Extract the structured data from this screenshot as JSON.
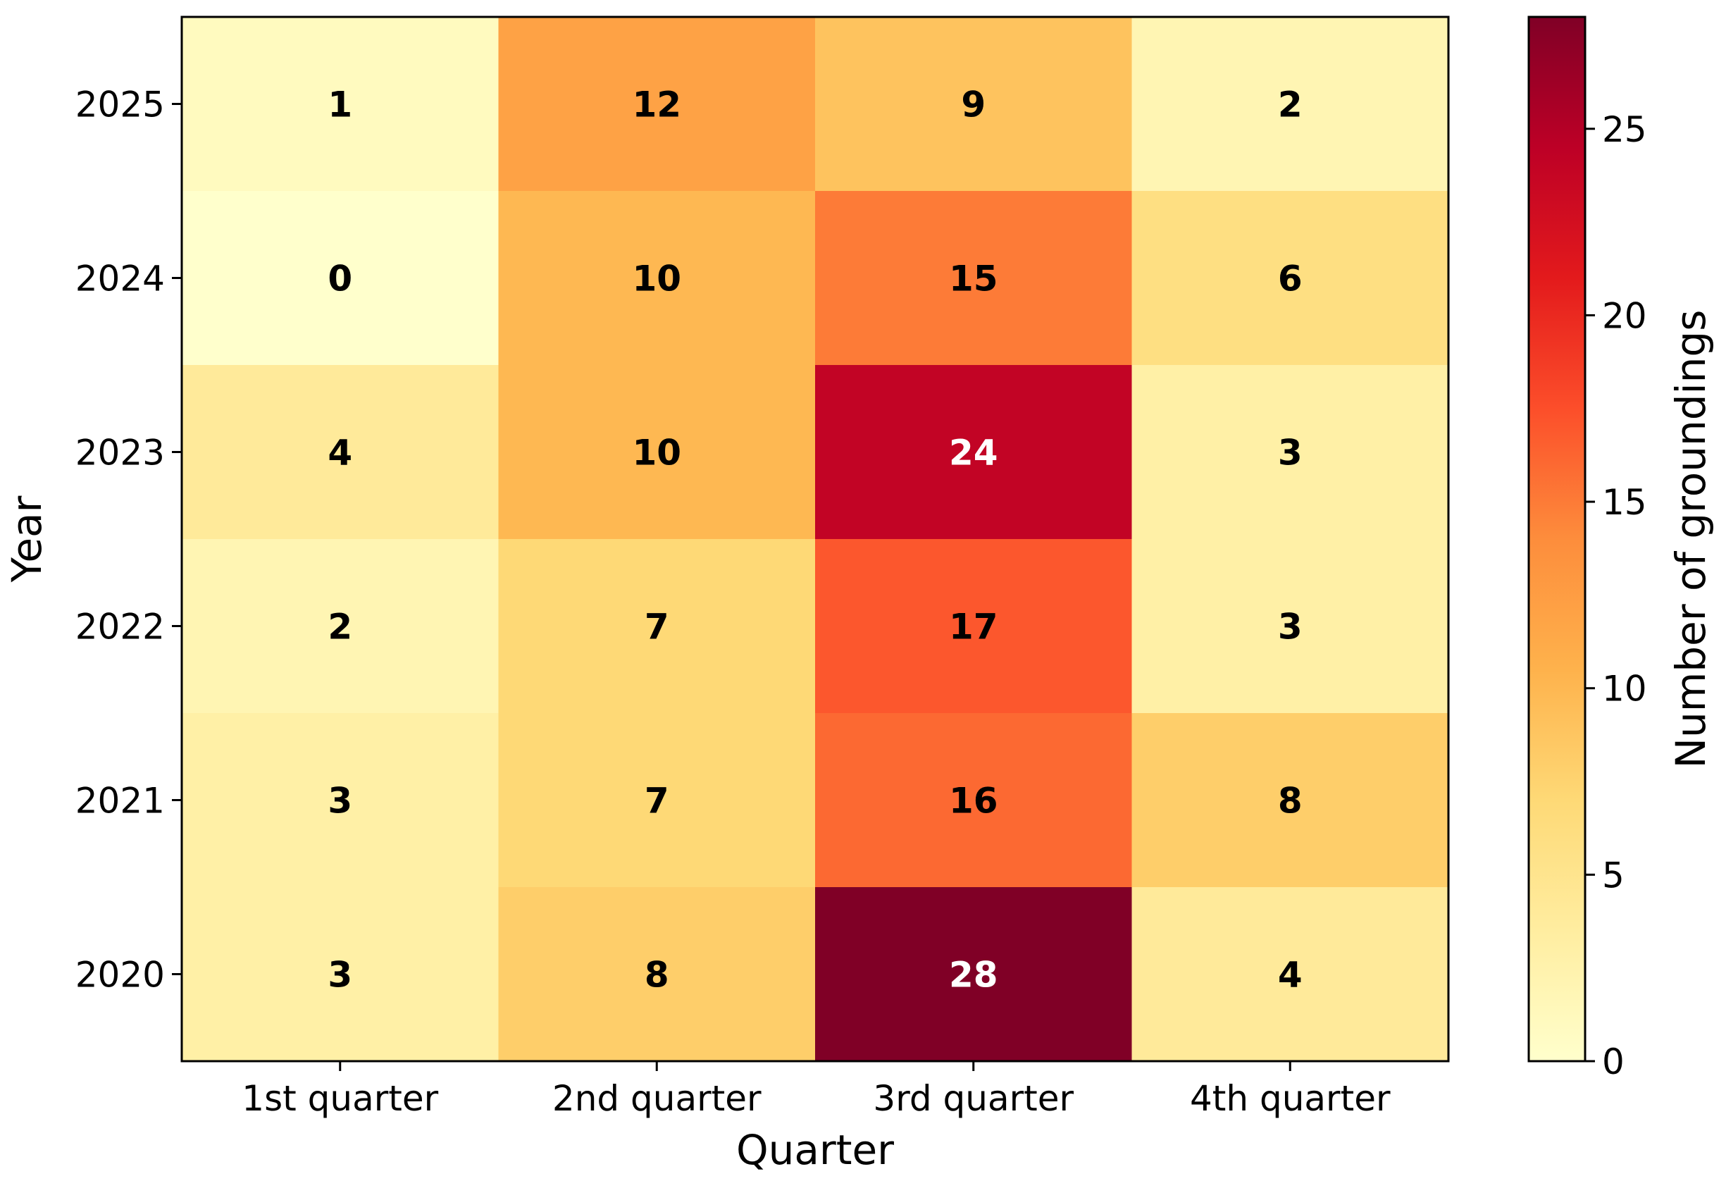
{
  "chart_data": {
    "type": "heatmap",
    "xlabel": "Quarter",
    "ylabel": "Year",
    "x_categories": [
      "1st quarter",
      "2nd quarter",
      "3rd quarter",
      "4th quarter"
    ],
    "y_categories": [
      "2025",
      "2024",
      "2023",
      "2022",
      "2021",
      "2020"
    ],
    "values": [
      [
        1,
        12,
        9,
        2
      ],
      [
        0,
        10,
        15,
        6
      ],
      [
        4,
        10,
        24,
        3
      ],
      [
        2,
        7,
        17,
        3
      ],
      [
        3,
        7,
        16,
        8
      ],
      [
        3,
        8,
        28,
        4
      ]
    ],
    "colorbar": {
      "label": "Number of groundings",
      "range": [
        0,
        28
      ],
      "ticks": [
        0,
        5,
        10,
        15,
        20,
        25
      ],
      "colormap": "YlOrRd"
    }
  }
}
